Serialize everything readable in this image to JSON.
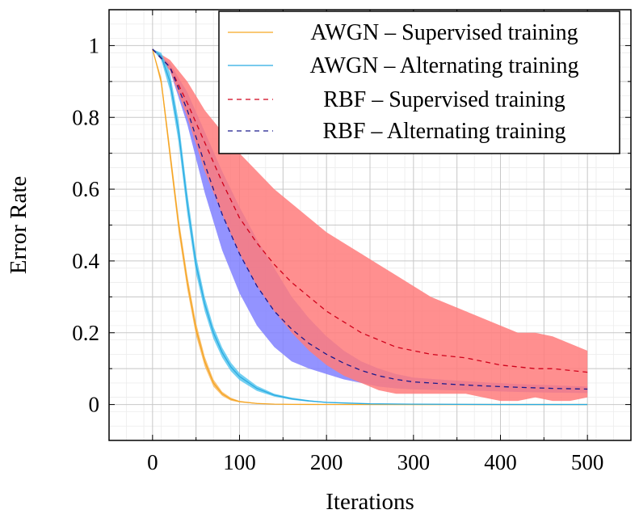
{
  "chart_data": {
    "type": "line",
    "title": "",
    "xlabel": "Iterations",
    "ylabel": "Error Rate",
    "xlim": [
      -50,
      550
    ],
    "ylim": [
      -0.1,
      1.1
    ],
    "xticks": [
      0,
      100,
      200,
      300,
      400,
      500
    ],
    "xtick_labels": [
      "0",
      "100",
      "200",
      "300",
      "400",
      "500"
    ],
    "yticks": [
      0,
      0.2,
      0.4,
      0.6,
      0.8,
      1
    ],
    "ytick_labels": [
      "0",
      "0.2",
      "0.4",
      "0.6",
      "0.8",
      "1"
    ],
    "grid": true,
    "legend_position": "top-right",
    "series": [
      {
        "name": "AWGN – Supervised training",
        "color": "#f5a623",
        "band_color": "#f7b352",
        "style": "solid",
        "x": [
          0,
          10,
          20,
          30,
          40,
          50,
          60,
          70,
          80,
          90,
          100,
          120,
          140,
          160,
          200,
          300,
          400,
          500
        ],
        "y": [
          0.99,
          0.9,
          0.7,
          0.5,
          0.34,
          0.21,
          0.12,
          0.06,
          0.03,
          0.015,
          0.008,
          0.003,
          0.001,
          0.0005,
          0.0002,
          0.0,
          0.0,
          0.0
        ],
        "band_halfwidth": [
          0.0,
          0.012,
          0.018,
          0.02,
          0.02,
          0.018,
          0.014,
          0.01,
          0.006,
          0.004,
          0.002,
          0.001,
          0.0,
          0.0,
          0.0,
          0.0,
          0.0,
          0.0
        ]
      },
      {
        "name": "AWGN – Alternating training",
        "color": "#29abe2",
        "band_color": "#4fc3ee",
        "style": "solid",
        "x": [
          0,
          10,
          20,
          30,
          40,
          50,
          60,
          70,
          80,
          90,
          100,
          120,
          140,
          160,
          180,
          200,
          250,
          300,
          400,
          500
        ],
        "y": [
          0.99,
          0.97,
          0.9,
          0.76,
          0.56,
          0.39,
          0.28,
          0.2,
          0.145,
          0.105,
          0.078,
          0.045,
          0.026,
          0.016,
          0.01,
          0.006,
          0.002,
          0.001,
          0.0,
          0.0
        ],
        "band_halfwidth": [
          0.0,
          0.01,
          0.025,
          0.03,
          0.03,
          0.025,
          0.02,
          0.017,
          0.014,
          0.012,
          0.01,
          0.007,
          0.004,
          0.003,
          0.002,
          0.001,
          0.0,
          0.0,
          0.0,
          0.0
        ]
      },
      {
        "name": "RBF – Supervised training",
        "color": "#d0021b",
        "band_color": "#ff7b7b",
        "style": "dashed",
        "x": [
          0,
          20,
          40,
          60,
          80,
          100,
          120,
          140,
          160,
          180,
          200,
          220,
          240,
          260,
          280,
          300,
          320,
          340,
          360,
          380,
          400,
          420,
          440,
          460,
          480,
          500
        ],
        "y": [
          0.99,
          0.94,
          0.84,
          0.73,
          0.62,
          0.52,
          0.45,
          0.39,
          0.34,
          0.3,
          0.26,
          0.23,
          0.2,
          0.18,
          0.16,
          0.15,
          0.14,
          0.135,
          0.13,
          0.12,
          0.11,
          0.105,
          0.1,
          0.1,
          0.095,
          0.09
        ],
        "band_upper": [
          0.99,
          0.96,
          0.9,
          0.82,
          0.76,
          0.7,
          0.65,
          0.6,
          0.56,
          0.52,
          0.48,
          0.45,
          0.42,
          0.39,
          0.36,
          0.33,
          0.3,
          0.28,
          0.26,
          0.24,
          0.22,
          0.2,
          0.2,
          0.19,
          0.17,
          0.15
        ],
        "band_lower": [
          0.99,
          0.93,
          0.8,
          0.65,
          0.53,
          0.42,
          0.33,
          0.26,
          0.2,
          0.15,
          0.11,
          0.08,
          0.06,
          0.04,
          0.03,
          0.03,
          0.03,
          0.03,
          0.03,
          0.02,
          0.01,
          0.01,
          0.02,
          0.01,
          0.01,
          0.02
        ]
      },
      {
        "name": "RBF – Alternating training",
        "color": "#1a1a8c",
        "band_color": "#8080ff",
        "style": "dashed",
        "x": [
          0,
          20,
          40,
          60,
          80,
          100,
          120,
          140,
          160,
          180,
          200,
          220,
          240,
          260,
          280,
          300,
          340,
          380,
          420,
          460,
          500
        ],
        "y": [
          0.99,
          0.94,
          0.82,
          0.67,
          0.53,
          0.42,
          0.33,
          0.26,
          0.21,
          0.17,
          0.14,
          0.115,
          0.095,
          0.08,
          0.07,
          0.063,
          0.057,
          0.052,
          0.048,
          0.045,
          0.043
        ],
        "band_upper": [
          0.99,
          0.95,
          0.87,
          0.76,
          0.65,
          0.55,
          0.46,
          0.38,
          0.3,
          0.24,
          0.19,
          0.15,
          0.12,
          0.1,
          0.085,
          0.075,
          0.068,
          0.062,
          0.057,
          0.054,
          0.05
        ],
        "band_lower": [
          0.99,
          0.93,
          0.78,
          0.59,
          0.43,
          0.31,
          0.22,
          0.16,
          0.12,
          0.1,
          0.085,
          0.07,
          0.06,
          0.05,
          0.045,
          0.042,
          0.04,
          0.038,
          0.035,
          0.033,
          0.032
        ]
      }
    ]
  }
}
